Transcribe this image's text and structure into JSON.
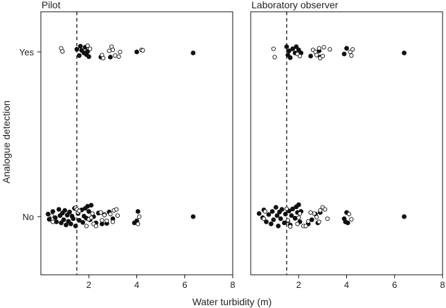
{
  "chart_data": [
    {
      "type": "scatter",
      "panel_title": "Pilot",
      "xlim": [
        0,
        8
      ],
      "x_ticks": [
        2,
        4,
        6,
        8
      ],
      "y_categories": [
        "No",
        "Yes"
      ],
      "threshold_x": 1.5,
      "series": [
        {
          "name": "filled",
          "marker": "filled-circle",
          "points": [
            [
              1.5,
              "Yes",
              0.05
            ],
            [
              1.6,
              "Yes",
              -0.07
            ],
            [
              1.65,
              "Yes",
              0.11
            ],
            [
              1.7,
              "Yes",
              0.03
            ],
            [
              1.8,
              "Yes",
              -0.02
            ],
            [
              1.85,
              "Yes",
              0.09
            ],
            [
              1.9,
              "Yes",
              -0.05
            ],
            [
              1.95,
              "Yes",
              0.01
            ],
            [
              2.0,
              "Yes",
              -0.09
            ],
            [
              2.5,
              "Yes",
              -0.1
            ],
            [
              2.9,
              "Yes",
              -0.1
            ],
            [
              4.0,
              "Yes",
              0.0
            ],
            [
              6.35,
              "Yes",
              -0.02
            ],
            [
              0.3,
              "No",
              0.05
            ],
            [
              0.35,
              "No",
              -0.05
            ],
            [
              0.5,
              "No",
              0.1
            ],
            [
              0.6,
              "No",
              -0.02
            ],
            [
              0.65,
              "No",
              -0.1
            ],
            [
              0.75,
              "No",
              0.14
            ],
            [
              0.8,
              "No",
              0.02
            ],
            [
              0.85,
              "No",
              -0.12
            ],
            [
              0.9,
              "No",
              0.07
            ],
            [
              0.95,
              "No",
              -0.06
            ],
            [
              1.0,
              "No",
              0.12
            ],
            [
              1.05,
              "No",
              -0.16
            ],
            [
              1.1,
              "No",
              0.03
            ],
            [
              1.15,
              "No",
              -0.09
            ],
            [
              1.2,
              "No",
              0.09
            ],
            [
              1.25,
              "No",
              -0.14
            ],
            [
              1.3,
              "No",
              0.01
            ],
            [
              1.35,
              "No",
              -0.04
            ],
            [
              1.4,
              "No",
              0.16
            ],
            [
              1.45,
              "No",
              -0.18
            ],
            [
              1.55,
              "No",
              0.06
            ],
            [
              1.6,
              "No",
              -0.07
            ],
            [
              1.7,
              "No",
              0.13
            ],
            [
              1.75,
              "No",
              -0.11
            ],
            [
              1.8,
              "No",
              0.01
            ],
            [
              1.85,
              "No",
              0.16
            ],
            [
              1.9,
              "No",
              -0.03
            ],
            [
              1.95,
              "No",
              0.2
            ],
            [
              2.0,
              "No",
              0.1
            ],
            [
              2.05,
              "No",
              -0.06
            ],
            [
              2.1,
              "No",
              0.22
            ],
            [
              2.2,
              "No",
              0.0
            ],
            [
              2.3,
              "No",
              -0.12
            ],
            [
              2.4,
              "No",
              0.07
            ],
            [
              2.55,
              "No",
              -0.14
            ],
            [
              2.65,
              "No",
              0.04
            ],
            [
              2.75,
              "No",
              -0.13
            ],
            [
              2.85,
              "No",
              0.09
            ],
            [
              3.0,
              "No",
              -0.04
            ],
            [
              4.0,
              "No",
              -0.08
            ],
            [
              4.05,
              "No",
              0.1
            ],
            [
              3.9,
              "No",
              -0.12
            ],
            [
              6.35,
              "No",
              0.0
            ]
          ]
        },
        {
          "name": "open",
          "marker": "open-circle",
          "points": [
            [
              0.85,
              "Yes",
              0.07
            ],
            [
              0.9,
              "Yes",
              0.01
            ],
            [
              1.95,
              "Yes",
              0.12
            ],
            [
              2.05,
              "Yes",
              0.06
            ],
            [
              2.55,
              "Yes",
              -0.06
            ],
            [
              2.6,
              "Yes",
              -0.12
            ],
            [
              2.85,
              "Yes",
              0.02
            ],
            [
              2.95,
              "Yes",
              0.1
            ],
            [
              3.0,
              "Yes",
              0.04
            ],
            [
              3.1,
              "Yes",
              -0.07
            ],
            [
              3.25,
              "Yes",
              -0.09
            ],
            [
              3.3,
              "Yes",
              0.0
            ],
            [
              4.2,
              "Yes",
              0.04
            ],
            [
              4.25,
              "Yes",
              0.03
            ],
            [
              0.45,
              "No",
              0.02
            ],
            [
              0.5,
              "No",
              -0.1
            ],
            [
              1.45,
              "No",
              0.17
            ],
            [
              1.5,
              "No",
              0.14
            ],
            [
              1.55,
              "No",
              0.08
            ],
            [
              1.6,
              "No",
              0.11
            ],
            [
              1.9,
              "No",
              -0.18
            ],
            [
              2.0,
              "No",
              -0.05
            ],
            [
              2.1,
              "No",
              -0.02
            ],
            [
              2.15,
              "No",
              0.06
            ],
            [
              2.2,
              "No",
              -0.14
            ],
            [
              2.3,
              "No",
              -0.18
            ],
            [
              2.5,
              "No",
              0.08
            ],
            [
              2.55,
              "No",
              -0.07
            ],
            [
              2.65,
              "No",
              0.03
            ],
            [
              2.75,
              "No",
              -0.08
            ],
            [
              2.9,
              "No",
              0.05
            ],
            [
              3.0,
              "No",
              -0.1
            ],
            [
              3.05,
              "No",
              0.12
            ],
            [
              3.15,
              "No",
              0.14
            ],
            [
              3.2,
              "No",
              0.02
            ],
            [
              4.1,
              "No",
              0.0
            ],
            [
              4.05,
              "No",
              -0.14
            ]
          ]
        }
      ]
    },
    {
      "type": "scatter",
      "panel_title": "Laboratory observer",
      "xlim": [
        0,
        8
      ],
      "x_ticks": [
        2,
        4,
        6,
        8
      ],
      "y_categories": [
        "No",
        "Yes"
      ],
      "threshold_x": 1.5,
      "series": [
        {
          "name": "filled",
          "marker": "filled-circle",
          "points": [
            [
              1.5,
              "Yes",
              0.1
            ],
            [
              1.55,
              "Yes",
              -0.06
            ],
            [
              1.6,
              "Yes",
              0.02
            ],
            [
              1.65,
              "Yes",
              -0.11
            ],
            [
              1.75,
              "Yes",
              0.06
            ],
            [
              1.85,
              "Yes",
              -0.02
            ],
            [
              1.9,
              "Yes",
              0.1
            ],
            [
              2.0,
              "Yes",
              0.04
            ],
            [
              2.1,
              "Yes",
              -0.02
            ],
            [
              2.5,
              "Yes",
              -0.08
            ],
            [
              2.85,
              "Yes",
              0.02
            ],
            [
              2.9,
              "Yes",
              -0.1
            ],
            [
              3.9,
              "Yes",
              -0.04
            ],
            [
              4.0,
              "Yes",
              0.07
            ],
            [
              6.4,
              "Yes",
              -0.02
            ],
            [
              0.35,
              "No",
              0.06
            ],
            [
              0.5,
              "No",
              -0.02
            ],
            [
              0.55,
              "No",
              0.13
            ],
            [
              0.65,
              "No",
              -0.1
            ],
            [
              0.75,
              "No",
              0.04
            ],
            [
              0.85,
              "No",
              -0.14
            ],
            [
              0.9,
              "No",
              0.1
            ],
            [
              0.95,
              "No",
              -0.06
            ],
            [
              1.05,
              "No",
              0.18
            ],
            [
              1.1,
              "No",
              0.02
            ],
            [
              1.15,
              "No",
              -0.18
            ],
            [
              1.2,
              "No",
              0.09
            ],
            [
              1.25,
              "No",
              -0.04
            ],
            [
              1.3,
              "No",
              0.14
            ],
            [
              1.4,
              "No",
              -0.12
            ],
            [
              1.45,
              "No",
              0.05
            ],
            [
              1.55,
              "No",
              -0.08
            ],
            [
              1.6,
              "No",
              0.11
            ],
            [
              1.65,
              "No",
              -0.16
            ],
            [
              1.7,
              "No",
              0.02
            ],
            [
              1.75,
              "No",
              0.15
            ],
            [
              1.85,
              "No",
              -0.03
            ],
            [
              1.9,
              "No",
              0.19
            ],
            [
              1.95,
              "No",
              0.08
            ],
            [
              2.0,
              "No",
              0.23
            ],
            [
              2.05,
              "No",
              -0.1
            ],
            [
              2.1,
              "No",
              0.1
            ],
            [
              2.4,
              "No",
              -0.14
            ],
            [
              2.55,
              "No",
              -0.06
            ],
            [
              2.7,
              "No",
              0.05
            ],
            [
              2.8,
              "No",
              -0.12
            ],
            [
              2.9,
              "No",
              0.08
            ],
            [
              3.9,
              "No",
              -0.04
            ],
            [
              3.95,
              "No",
              -0.1
            ],
            [
              4.0,
              "No",
              0.08
            ],
            [
              4.05,
              "No",
              -0.12
            ],
            [
              6.4,
              "No",
              0.0
            ]
          ]
        },
        {
          "name": "open",
          "marker": "open-circle",
          "points": [
            [
              0.95,
              "Yes",
              0.06
            ],
            [
              1.0,
              "Yes",
              -0.1
            ],
            [
              1.95,
              "Yes",
              -0.04
            ],
            [
              2.05,
              "Yes",
              -0.08
            ],
            [
              2.6,
              "Yes",
              0.04
            ],
            [
              2.7,
              "Yes",
              0.0
            ],
            [
              2.75,
              "Yes",
              -0.06
            ],
            [
              2.85,
              "Yes",
              0.07
            ],
            [
              2.9,
              "Yes",
              -0.12
            ],
            [
              3.0,
              "Yes",
              -0.08
            ],
            [
              3.05,
              "Yes",
              0.09
            ],
            [
              3.3,
              "Yes",
              0.05
            ],
            [
              4.15,
              "Yes",
              0.0
            ],
            [
              4.2,
              "Yes",
              -0.07
            ],
            [
              4.25,
              "Yes",
              0.05
            ],
            [
              0.55,
              "No",
              -0.04
            ],
            [
              0.6,
              "No",
              0.1
            ],
            [
              1.5,
              "No",
              0.15
            ],
            [
              1.55,
              "No",
              -0.07
            ],
            [
              1.65,
              "No",
              -0.19
            ],
            [
              1.95,
              "No",
              -0.14
            ],
            [
              2.0,
              "No",
              -0.02
            ],
            [
              2.05,
              "No",
              0.06
            ],
            [
              2.2,
              "No",
              -0.18
            ],
            [
              2.3,
              "No",
              -0.18
            ],
            [
              2.4,
              "No",
              -0.09
            ],
            [
              2.5,
              "No",
              0.08
            ],
            [
              2.65,
              "No",
              0.06
            ],
            [
              2.75,
              "No",
              -0.01
            ],
            [
              2.85,
              "No",
              -0.1
            ],
            [
              2.9,
              "No",
              0.12
            ],
            [
              3.0,
              "No",
              0.18
            ],
            [
              3.1,
              "No",
              0.14
            ],
            [
              3.2,
              "No",
              -0.04
            ],
            [
              4.1,
              "No",
              0.05
            ],
            [
              4.2,
              "No",
              -0.05
            ]
          ]
        }
      ]
    }
  ],
  "shared_axes": {
    "xlabel": "Water turbidity (m)",
    "ylabel": "Analogue detection"
  }
}
